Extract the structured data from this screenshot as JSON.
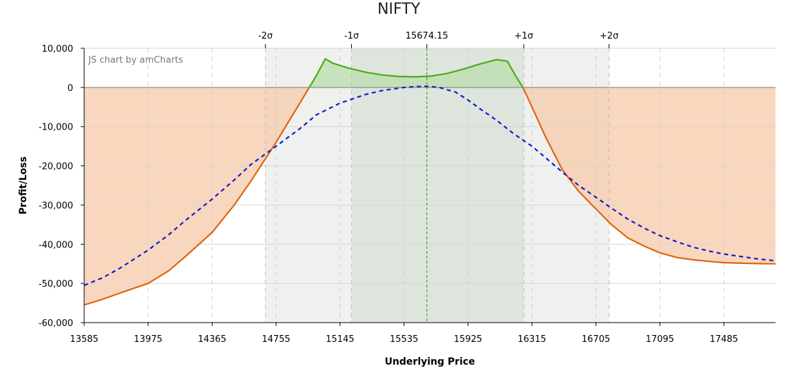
{
  "chart_data": {
    "type": "area",
    "title": "NIFTY",
    "watermark": "JS chart by amCharts",
    "xlabel": "Underlying Price",
    "ylabel": "Profit/Loss",
    "xlim": [
      13585,
      17800
    ],
    "ylim": [
      -60000,
      10000
    ],
    "x_ticks": [
      13585,
      13975,
      14365,
      14755,
      15145,
      15535,
      15925,
      16315,
      16705,
      17095,
      17485
    ],
    "y_ticks": [
      10000,
      0,
      -10000,
      -20000,
      -30000,
      -40000,
      -50000,
      -60000
    ],
    "y_tick_labels": [
      "10,000",
      "0",
      "-10,000",
      "-20,000",
      "-30,000",
      "-40,000",
      "-50,000",
      "-60,000"
    ],
    "spot": 15674.15,
    "spot_label": "15674.15",
    "sigma_marks": [
      {
        "label": "-2σ",
        "x": 14690
      },
      {
        "label": "-1σ",
        "x": 15215
      },
      {
        "label": "+1σ",
        "x": 16265
      },
      {
        "label": "+2σ",
        "x": 16785
      }
    ],
    "sigma_bands": [
      {
        "from": 14690,
        "to": 16785,
        "color": "#eef1ee"
      },
      {
        "from": 15215,
        "to": 16265,
        "color": "#dde5dd"
      }
    ],
    "series": [
      {
        "name": "",
        "style": "solid",
        "color_loss": "#e0640f",
        "color_profit": "#4aab16",
        "fill_loss": "#f6c9a8",
        "fill_profit": "#b9deab",
        "x": [
          13585,
          13700,
          13800,
          13975,
          14100,
          14200,
          14365,
          14500,
          14600,
          14755,
          14900,
          15000,
          15055,
          15100,
          15200,
          15300,
          15400,
          15500,
          15600,
          15700,
          15800,
          15900,
          16000,
          16100,
          16165,
          16215,
          16260,
          16300,
          16400,
          16500,
          16600,
          16705,
          16800,
          16900,
          17000,
          17095,
          17200,
          17300,
          17400,
          17485,
          17600,
          17700,
          17800
        ],
        "y": [
          -55500,
          -54000,
          -52500,
          -50000,
          -46800,
          -43200,
          -37000,
          -30000,
          -24000,
          -14000,
          -4000,
          3000,
          7300,
          6200,
          4900,
          3900,
          3200,
          2800,
          2700,
          2900,
          3600,
          4700,
          6000,
          7100,
          6700,
          3000,
          0,
          -3600,
          -12800,
          -21000,
          -26500,
          -31000,
          -35000,
          -38400,
          -40500,
          -42200,
          -43400,
          -44000,
          -44400,
          -44700,
          -44850,
          -44950,
          -45000
        ]
      },
      {
        "name": "",
        "style": "dashed",
        "color": "#1919c8",
        "x": [
          13585,
          13700,
          13800,
          13975,
          14100,
          14200,
          14365,
          14500,
          14600,
          14755,
          14900,
          15000,
          15145,
          15300,
          15400,
          15535,
          15600,
          15674,
          15750,
          15850,
          15925,
          16000,
          16100,
          16200,
          16315,
          16400,
          16500,
          16600,
          16705,
          16800,
          16900,
          17000,
          17095,
          17200,
          17300,
          17400,
          17485,
          17600,
          17700,
          17800
        ],
        "y": [
          -50500,
          -48500,
          -46200,
          -41500,
          -37600,
          -34000,
          -28500,
          -23600,
          -19700,
          -15000,
          -10500,
          -7000,
          -4000,
          -1800,
          -800,
          0,
          200,
          300,
          0,
          -1200,
          -3200,
          -5500,
          -8400,
          -11700,
          -15000,
          -18000,
          -21600,
          -25000,
          -28000,
          -30800,
          -33600,
          -35900,
          -37800,
          -39400,
          -40800,
          -41800,
          -42500,
          -43200,
          -43800,
          -44200
        ]
      }
    ],
    "grid": true,
    "legend": "none"
  }
}
